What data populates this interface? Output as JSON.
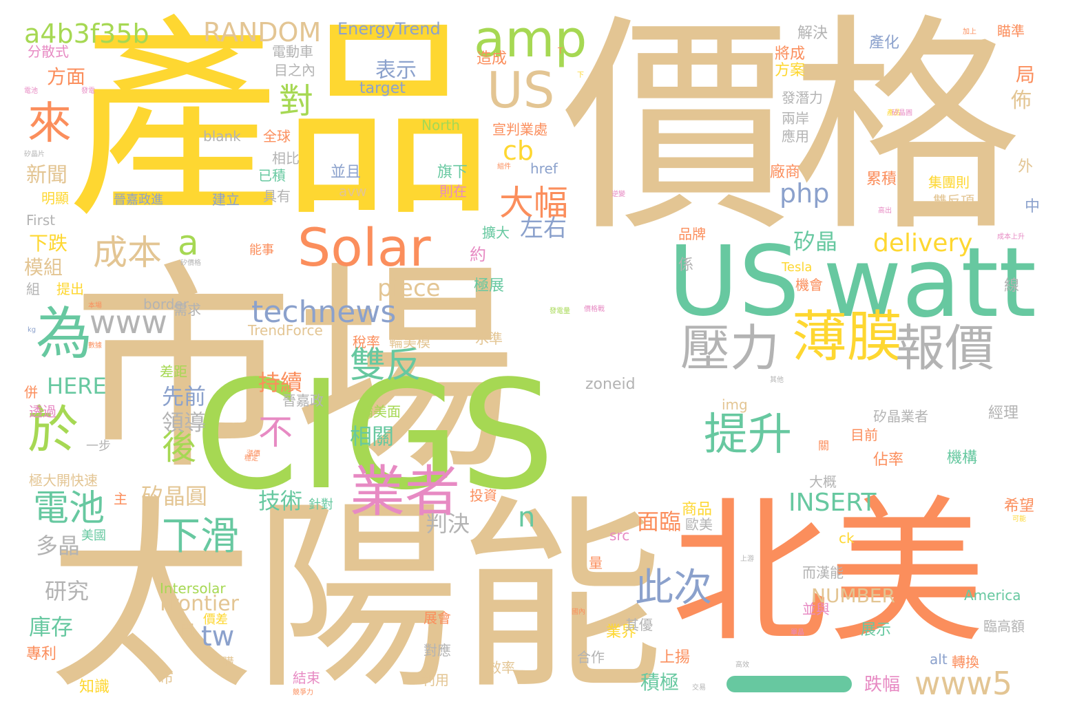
{
  "palette": {
    "tan": "#e3c593",
    "yellow": "#fed731",
    "orange": "#fb8e5c",
    "teal": "#67c8a0",
    "green": "#a6d853",
    "blue": "#8ba1cc",
    "pink": "#e78ac3",
    "gray": "#b3b3b3"
  },
  "words": [
    {
      "text": "市場",
      "color": "tan"
    },
    {
      "text": "價格",
      "color": "tan"
    },
    {
      "text": "產品",
      "color": "yellow"
    },
    {
      "text": "太陽能",
      "color": "tan"
    },
    {
      "text": "CIGS",
      "color": "green"
    },
    {
      "text": "北美",
      "color": "orange"
    },
    {
      "text": "watt",
      "color": "teal"
    },
    {
      "text": "US",
      "color": "teal"
    },
    {
      "text": "US",
      "color": "tan"
    },
    {
      "text": "amp",
      "color": "green"
    },
    {
      "text": "Solar",
      "color": "orange"
    },
    {
      "text": "業者",
      "color": "pink"
    },
    {
      "text": "薄膜",
      "color": "yellow"
    },
    {
      "text": "壓力",
      "color": "gray"
    },
    {
      "text": "報價",
      "color": "gray"
    },
    {
      "text": "提升",
      "color": "teal"
    },
    {
      "text": "為",
      "color": "teal"
    },
    {
      "text": "於",
      "color": "green"
    },
    {
      "text": "來",
      "color": "orange"
    },
    {
      "text": "www",
      "color": "gray"
    },
    {
      "text": "technews",
      "color": "blue"
    },
    {
      "text": "雙反",
      "color": "teal"
    },
    {
      "text": "下滑",
      "color": "teal"
    },
    {
      "text": "電池",
      "color": "teal"
    },
    {
      "text": "此次",
      "color": "blue"
    },
    {
      "text": "www5",
      "color": "tan"
    },
    {
      "text": "成本",
      "color": "tan"
    },
    {
      "text": "大幅",
      "color": "orange"
    },
    {
      "text": "a4b3f35b",
      "color": "green"
    },
    {
      "text": "RANDOM",
      "color": "tan"
    },
    {
      "text": "EnergyTrend",
      "color": "blue"
    },
    {
      "text": "對",
      "color": "green"
    },
    {
      "text": "後",
      "color": "green"
    },
    {
      "text": "a",
      "color": "green"
    },
    {
      "text": "表示",
      "color": "blue"
    },
    {
      "text": "target",
      "color": "blue"
    },
    {
      "text": "cb",
      "color": "yellow"
    },
    {
      "text": "php",
      "color": "blue"
    },
    {
      "text": "左右",
      "color": "blue"
    },
    {
      "text": "delivery",
      "color": "yellow"
    },
    {
      "text": "piece",
      "color": "tan"
    },
    {
      "text": "矽晶",
      "color": "teal"
    },
    {
      "text": "不",
      "color": "pink"
    },
    {
      "text": "INSERT",
      "color": "teal"
    },
    {
      "text": "Frontier",
      "color": "tan"
    },
    {
      "text": "tw",
      "color": "blue"
    },
    {
      "text": "n",
      "color": "teal"
    },
    {
      "text": "HERE",
      "color": "teal"
    },
    {
      "text": "持續",
      "color": "orange"
    },
    {
      "text": "先前",
      "color": "blue"
    },
    {
      "text": "領導",
      "color": "gray"
    },
    {
      "text": "相關",
      "color": "teal"
    },
    {
      "text": "技術",
      "color": "teal"
    },
    {
      "text": "矽晶圓",
      "color": "tan"
    },
    {
      "text": "判決",
      "color": "gray"
    },
    {
      "text": "面臨",
      "color": "orange"
    },
    {
      "text": "NUMBER",
      "color": "tan"
    },
    {
      "text": "研究",
      "color": "gray"
    },
    {
      "text": "多晶",
      "color": "gray"
    },
    {
      "text": "庫存",
      "color": "teal"
    },
    {
      "text": "模組",
      "color": "tan"
    },
    {
      "text": "下跌",
      "color": "yellow"
    },
    {
      "text": "新聞",
      "color": "tan"
    },
    {
      "text": "方面",
      "color": "orange"
    },
    {
      "text": "分散式",
      "color": "pink"
    },
    {
      "text": "電動車",
      "color": "gray"
    },
    {
      "text": "目之內",
      "color": "gray"
    },
    {
      "text": "解決",
      "color": "gray"
    },
    {
      "text": "將成",
      "color": "orange"
    },
    {
      "text": "方案",
      "color": "yellow"
    },
    {
      "text": "產化",
      "color": "blue"
    },
    {
      "text": "瞄準",
      "color": "orange"
    },
    {
      "text": "局",
      "color": "orange"
    },
    {
      "text": "佈",
      "color": "tan"
    },
    {
      "text": "發潛力",
      "color": "gray"
    },
    {
      "text": "兩岸",
      "color": "gray"
    },
    {
      "text": "應用",
      "color": "gray"
    },
    {
      "text": "廠商",
      "color": "orange"
    },
    {
      "text": "累積",
      "color": "orange"
    },
    {
      "text": "集團則",
      "color": "yellow"
    },
    {
      "text": "雙反項",
      "color": "tan"
    },
    {
      "text": "中",
      "color": "blue"
    },
    {
      "text": "外",
      "color": "tan"
    },
    {
      "text": "Tesla",
      "color": "yellow"
    },
    {
      "text": "機會",
      "color": "orange"
    },
    {
      "text": "線",
      "color": "gray"
    },
    {
      "text": "係",
      "color": "gray"
    },
    {
      "text": "品牌",
      "color": "orange"
    },
    {
      "text": "矽晶業者",
      "color": "gray"
    },
    {
      "text": "經理",
      "color": "gray"
    },
    {
      "text": "目前",
      "color": "orange"
    },
    {
      "text": "機構",
      "color": "teal"
    },
    {
      "text": "佔率",
      "color": "orange"
    },
    {
      "text": "大概",
      "color": "gray"
    },
    {
      "text": "希望",
      "color": "orange"
    },
    {
      "text": "商品",
      "color": "yellow"
    },
    {
      "text": "歐美",
      "color": "gray"
    },
    {
      "text": "而漢能",
      "color": "gray"
    },
    {
      "text": "America",
      "color": "teal"
    },
    {
      "text": "並與",
      "color": "pink"
    },
    {
      "text": "臨高額",
      "color": "gray"
    },
    {
      "text": "展示",
      "color": "teal"
    },
    {
      "text": "跌幅",
      "color": "pink"
    },
    {
      "text": "上揚",
      "color": "orange"
    },
    {
      "text": "積極",
      "color": "teal"
    },
    {
      "text": "業界",
      "color": "yellow"
    },
    {
      "text": "其優",
      "color": "gray"
    },
    {
      "text": "合作",
      "color": "gray"
    },
    {
      "text": "alt",
      "color": "blue"
    },
    {
      "text": "轉換",
      "color": "orange"
    },
    {
      "text": "效率",
      "color": "tan"
    },
    {
      "text": "利用",
      "color": "tan"
    },
    {
      "text": "結束",
      "color": "pink"
    },
    {
      "text": "展會",
      "color": "orange"
    },
    {
      "text": "對應",
      "color": "gray"
    },
    {
      "text": "Intersolar",
      "color": "green"
    },
    {
      "text": "價差",
      "color": "yellow"
    },
    {
      "text": "閃",
      "color": "tan"
    },
    {
      "text": "專利",
      "color": "orange"
    },
    {
      "text": "知識",
      "color": "yellow"
    },
    {
      "text": "市",
      "color": "tan"
    },
    {
      "text": "購",
      "color": "tan"
    },
    {
      "text": "透過",
      "color": "pink"
    },
    {
      "text": "一步",
      "color": "gray"
    },
    {
      "text": "極大開快速",
      "color": "tan"
    },
    {
      "text": "主",
      "color": "orange"
    },
    {
      "text": "美國",
      "color": "teal"
    },
    {
      "text": "差距",
      "color": "green"
    },
    {
      "text": "併",
      "color": "orange"
    },
    {
      "text": "晉嘉政",
      "color": "gray"
    },
    {
      "text": "輪美面",
      "color": "green"
    },
    {
      "text": "投資",
      "color": "orange"
    },
    {
      "text": "針對",
      "color": "teal"
    },
    {
      "text": "水準",
      "color": "tan"
    },
    {
      "text": "zoneid",
      "color": "gray"
    },
    {
      "text": "img",
      "color": "tan"
    },
    {
      "text": "稅率",
      "color": "orange"
    },
    {
      "text": "輪美模",
      "color": "tan"
    },
    {
      "text": "TrendForce",
      "color": "tan"
    },
    {
      "text": "需求",
      "color": "gray"
    },
    {
      "text": "border",
      "color": "gray"
    },
    {
      "text": "極展",
      "color": "teal"
    },
    {
      "text": "約",
      "color": "pink"
    },
    {
      "text": "擴大",
      "color": "teal"
    },
    {
      "text": "能事",
      "color": "orange"
    },
    {
      "text": "提出",
      "color": "yellow"
    },
    {
      "text": "組",
      "color": "gray"
    },
    {
      "text": "明顯",
      "color": "yellow"
    },
    {
      "text": "First",
      "color": "gray"
    },
    {
      "text": "晉嘉政進",
      "color": "blue"
    },
    {
      "text": "建立",
      "color": "blue"
    },
    {
      "text": "具有",
      "color": "gray"
    },
    {
      "text": "已積",
      "color": "teal"
    },
    {
      "text": "相比",
      "color": "gray"
    },
    {
      "text": "全球",
      "color": "orange"
    },
    {
      "text": "blank",
      "color": "gray"
    },
    {
      "text": "North",
      "color": "green"
    },
    {
      "text": "宣判業處",
      "color": "orange"
    },
    {
      "text": "href",
      "color": "blue"
    },
    {
      "text": "旗下",
      "color": "teal"
    },
    {
      "text": "則在",
      "color": "pink"
    },
    {
      "text": "並且",
      "color": "blue"
    },
    {
      "text": "avw",
      "color": "tan"
    },
    {
      "text": "造成",
      "color": "orange"
    },
    {
      "text": "src",
      "color": "pink"
    },
    {
      "text": "量",
      "color": "orange"
    },
    {
      "text": "ck",
      "color": "yellow"
    },
    {
      "text": "加上",
      "color": "orange"
    },
    {
      "text": "高出",
      "color": "pink"
    },
    {
      "text": "成本上升",
      "color": "pink"
    },
    {
      "text": "可能",
      "color": "yellow"
    },
    {
      "text": "電池",
      "color": "pink"
    },
    {
      "text": "矽晶片",
      "color": "gray"
    },
    {
      "text": "發電",
      "color": "pink"
    },
    {
      "text": "產品",
      "color": "yellow"
    },
    {
      "text": "本場",
      "color": "orange"
    },
    {
      "text": "漲價",
      "color": "orange"
    },
    {
      "text": "國內",
      "color": "orange"
    },
    {
      "text": "交易",
      "color": "gray"
    },
    {
      "text": "競爭力",
      "color": "orange"
    },
    {
      "text": "高效",
      "color": "gray"
    },
    {
      "text": "上游",
      "color": "gray"
    },
    {
      "text": "單晶",
      "color": "pink"
    },
    {
      "text": "發電量",
      "color": "green"
    },
    {
      "text": "價格戰",
      "color": "pink"
    },
    {
      "text": "組件",
      "color": "orange"
    },
    {
      "text": "矽晶圓",
      "color": "pink"
    },
    {
      "text": "矽價格",
      "color": "gray"
    },
    {
      "text": "下",
      "color": "yellow"
    },
    {
      "text": "T",
      "color": "orange"
    },
    {
      "text": "kg",
      "color": "blue"
    },
    {
      "text": "數據",
      "color": "orange"
    },
    {
      "text": "關",
      "color": "orange"
    },
    {
      "text": "穩定",
      "color": "orange"
    },
    {
      "text": "逆變",
      "color": "pink"
    },
    {
      "text": "其他",
      "color": "gray"
    }
  ]
}
